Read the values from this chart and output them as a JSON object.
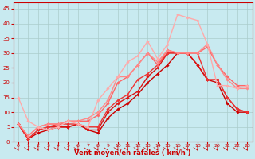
{
  "xlabel": "Vent moyen/en rafales ( km/h )",
  "background_color": "#c8eaf0",
  "grid_color": "#aacccc",
  "xlim": [
    -0.5,
    23.5
  ],
  "ylim": [
    0,
    47
  ],
  "yticks": [
    0,
    5,
    10,
    15,
    20,
    25,
    30,
    35,
    40,
    45
  ],
  "xticks": [
    0,
    1,
    2,
    3,
    4,
    5,
    6,
    7,
    8,
    9,
    10,
    11,
    12,
    13,
    14,
    15,
    16,
    17,
    18,
    19,
    20,
    21,
    22,
    23
  ],
  "lines": [
    {
      "x": [
        0,
        1,
        2,
        3,
        4,
        5,
        6,
        7,
        8,
        9,
        10,
        11,
        12,
        13,
        14,
        15,
        16,
        17,
        18,
        19,
        20,
        21,
        22,
        23
      ],
      "y": [
        6,
        1,
        3,
        4,
        5,
        5,
        6,
        4,
        3,
        8,
        11,
        13,
        16,
        20,
        23,
        26,
        30,
        30,
        26,
        21,
        20,
        13,
        10,
        10
      ],
      "color": "#cc0000",
      "lw": 1.0
    },
    {
      "x": [
        0,
        1,
        2,
        3,
        4,
        5,
        6,
        7,
        8,
        9,
        10,
        11,
        12,
        13,
        14,
        15,
        16,
        17,
        18,
        19,
        20,
        21,
        22,
        23
      ],
      "y": [
        6,
        1,
        4,
        5,
        5,
        5,
        6,
        4,
        4,
        10,
        13,
        15,
        17,
        22,
        25,
        30,
        30,
        30,
        26,
        21,
        21,
        15,
        11,
        10
      ],
      "color": "#dd1111",
      "lw": 1.0
    },
    {
      "x": [
        0,
        1,
        2,
        3,
        4,
        5,
        6,
        7,
        8,
        9,
        10,
        11,
        12,
        13,
        14,
        15,
        16,
        17,
        18,
        19,
        20,
        21,
        22,
        23
      ],
      "y": [
        6,
        1,
        4,
        5,
        6,
        6,
        6,
        5,
        5,
        11,
        14,
        16,
        21,
        23,
        26,
        30,
        30,
        30,
        30,
        21,
        21,
        15,
        11,
        10
      ],
      "color": "#ee3333",
      "lw": 1.0
    },
    {
      "x": [
        0,
        1,
        2,
        3,
        4,
        5,
        6,
        7,
        8,
        9,
        10,
        11,
        12,
        13,
        14,
        15,
        16,
        17,
        18,
        19,
        20,
        21,
        22,
        23
      ],
      "y": [
        6,
        2,
        5,
        6,
        6,
        7,
        7,
        7,
        9,
        13,
        20,
        22,
        26,
        30,
        26,
        31,
        30,
        30,
        30,
        32,
        26,
        22,
        19,
        19
      ],
      "color": "#ff6666",
      "lw": 1.0
    },
    {
      "x": [
        0,
        1,
        2,
        3,
        4,
        5,
        6,
        7,
        8,
        9,
        10,
        11,
        12,
        13,
        14,
        15,
        16,
        17,
        18,
        19,
        20,
        21,
        22,
        23
      ],
      "y": [
        6,
        2,
        5,
        6,
        6,
        7,
        7,
        8,
        10,
        14,
        22,
        22,
        26,
        30,
        27,
        31,
        30,
        30,
        30,
        33,
        26,
        21,
        18,
        18
      ],
      "color": "#ff8888",
      "lw": 1.0
    },
    {
      "x": [
        0,
        1,
        2,
        3,
        4,
        5,
        6,
        7,
        8,
        9,
        10,
        11,
        12,
        13,
        14,
        15,
        16,
        17,
        18,
        19,
        20,
        21,
        22,
        23
      ],
      "y": [
        15,
        7,
        5,
        4,
        5,
        7,
        6,
        5,
        14,
        18,
        22,
        27,
        29,
        34,
        28,
        33,
        43,
        42,
        41,
        33,
        19,
        19,
        18,
        19
      ],
      "color": "#ffaaaa",
      "lw": 1.0
    }
  ],
  "marker": "D",
  "markersize": 1.8,
  "tick_color": "#cc0000",
  "label_color": "#cc0000",
  "spine_color": "#cc0000",
  "xlabel_fontsize": 6.0,
  "tick_fontsize": 4.5,
  "ytick_fontsize": 5.0
}
